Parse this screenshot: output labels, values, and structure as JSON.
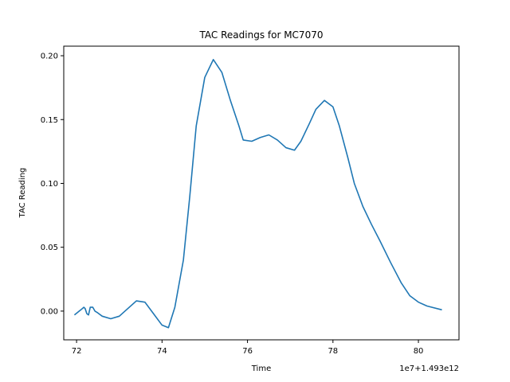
{
  "chart_data": {
    "type": "line",
    "title": "TAC Readings for MC7070",
    "xlabel": "Time",
    "ylabel": "TAC Reading",
    "x_offset_label": "1e7+1.493e12",
    "xlim": [
      71.7,
      80.95
    ],
    "ylim": [
      -0.0225,
      0.2075
    ],
    "x_ticks": [
      72,
      74,
      76,
      78,
      80
    ],
    "y_ticks": [
      0.0,
      0.05,
      0.1,
      0.15,
      0.2
    ],
    "x_tick_labels": [
      "72",
      "74",
      "76",
      "78",
      "80"
    ],
    "y_tick_labels": [
      "0.00",
      "0.05",
      "0.10",
      "0.15",
      "0.20"
    ],
    "grid": false,
    "series": [
      {
        "color": "#1f77b4",
        "x": [
          71.95,
          72.1,
          72.17,
          72.2,
          72.24,
          72.28,
          72.32,
          72.38,
          72.43,
          72.48,
          72.6,
          72.8,
          73.0,
          73.2,
          73.4,
          73.6,
          73.8,
          74.0,
          74.15,
          74.3,
          74.5,
          74.65,
          74.8,
          75.0,
          75.2,
          75.4,
          75.6,
          75.8,
          75.9,
          76.1,
          76.3,
          76.5,
          76.7,
          76.9,
          77.1,
          77.25,
          77.45,
          77.6,
          77.8,
          78.0,
          78.15,
          78.35,
          78.5,
          78.7,
          78.9,
          79.1,
          79.35,
          79.6,
          79.8,
          80.0,
          80.2,
          80.55
        ],
        "y": [
          -0.003,
          0.001,
          0.003,
          0.002,
          -0.002,
          -0.003,
          0.003,
          0.003,
          0.0,
          -0.001,
          -0.004,
          -0.006,
          -0.004,
          0.002,
          0.008,
          0.007,
          -0.002,
          -0.011,
          -0.013,
          0.003,
          0.04,
          0.09,
          0.145,
          0.183,
          0.197,
          0.187,
          0.165,
          0.145,
          0.134,
          0.133,
          0.136,
          0.138,
          0.134,
          0.128,
          0.126,
          0.133,
          0.147,
          0.158,
          0.165,
          0.16,
          0.145,
          0.12,
          0.1,
          0.082,
          0.068,
          0.055,
          0.038,
          0.022,
          0.012,
          0.007,
          0.004,
          0.001
        ]
      }
    ]
  }
}
